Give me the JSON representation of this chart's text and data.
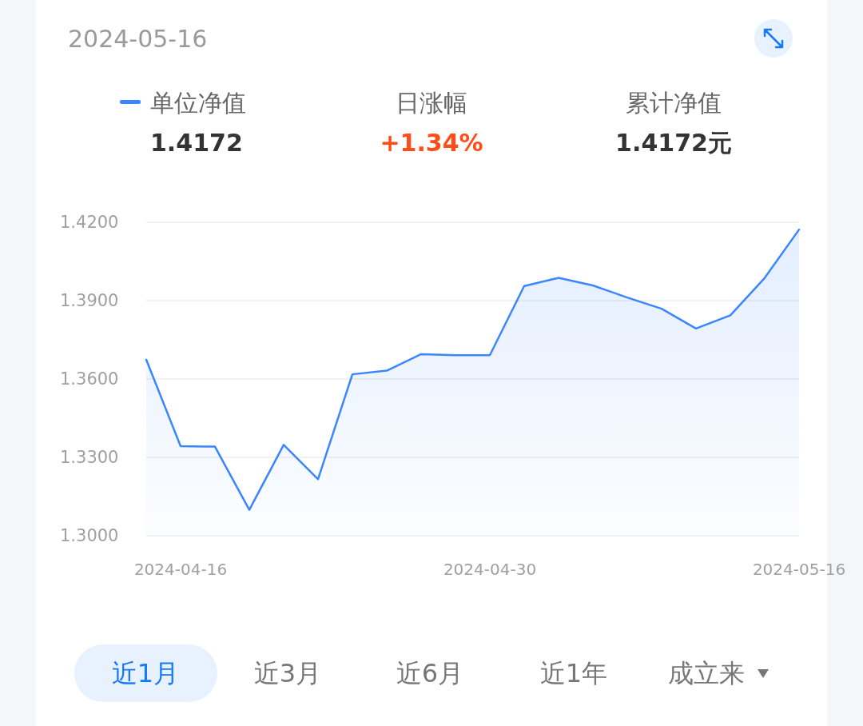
{
  "chart_data": {
    "type": "area",
    "title": "2024-05-16",
    "categories": [
      null,
      "2024-04-16",
      null,
      null,
      null,
      null,
      null,
      null,
      null,
      null,
      "2024-04-30",
      null,
      null,
      null,
      null,
      null,
      null,
      null,
      null,
      "2024-05-16"
    ],
    "series": [
      {
        "name": "单位净值",
        "color": "#3a86ff",
        "values": [
          1.3674,
          1.3343,
          1.3341,
          1.3099,
          1.3348,
          1.3216,
          1.3618,
          1.3632,
          1.3695,
          1.3691,
          1.3691,
          1.3956,
          1.3987,
          1.3958,
          1.3912,
          1.3869,
          1.3793,
          1.3844,
          1.3987,
          1.4172
        ]
      }
    ],
    "ylim": [
      1.3,
      1.42
    ],
    "yticks": [
      {
        "value": 1.3,
        "label": "1.3000"
      },
      {
        "value": 1.33,
        "label": "1.3300"
      },
      {
        "value": 1.36,
        "label": "1.3600"
      },
      {
        "value": 1.39,
        "label": "1.3900"
      },
      {
        "value": 1.42,
        "label": "1.4200"
      }
    ],
    "grid": "y",
    "legend": "top left",
    "annotations": [
      "1.4172",
      "日涨幅",
      "+1.34%",
      "累计净值",
      "1.4172元",
      "近1月",
      "近3月",
      "近6月",
      "近1年",
      "成立来"
    ]
  }
}
